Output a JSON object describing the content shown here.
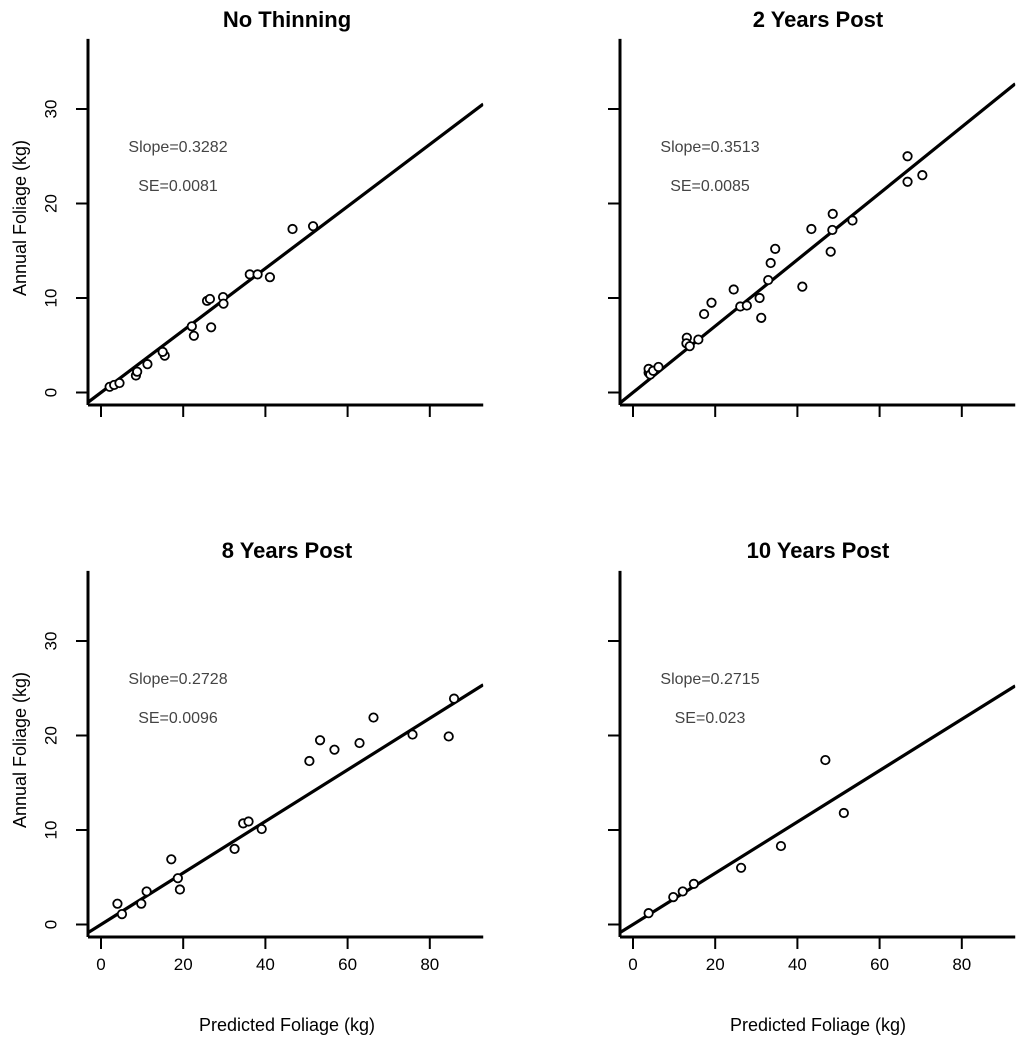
{
  "figure": {
    "panels": [
      {
        "title": "No Thinning",
        "slope_label": "Slope=0.3282",
        "se_label": "SE=0.0081",
        "xlabel": "",
        "ylabel": "Annual Foliage (kg)",
        "x_ticks": [
          0,
          20,
          40,
          60,
          80
        ],
        "x_tick_labels": [],
        "y_ticks": [
          0,
          10,
          20,
          30
        ],
        "y_tick_labels": [
          "0",
          "10",
          "20",
          "30"
        ]
      },
      {
        "title": "2 Years Post",
        "slope_label": "Slope=0.3513",
        "se_label": "SE=0.0085",
        "xlabel": "",
        "ylabel": "",
        "x_ticks": [
          0,
          20,
          40,
          60,
          80
        ],
        "x_tick_labels": [],
        "y_ticks": [
          0,
          10,
          20,
          30
        ],
        "y_tick_labels": []
      },
      {
        "title": "8 Years Post",
        "slope_label": "Slope=0.2728",
        "se_label": "SE=0.0096",
        "xlabel": "Predicted Foliage (kg)",
        "ylabel": "Annual Foliage (kg)",
        "x_ticks": [
          0,
          20,
          40,
          60,
          80
        ],
        "x_tick_labels": [
          "0",
          "20",
          "40",
          "60",
          "80"
        ],
        "y_ticks": [
          0,
          10,
          20,
          30
        ],
        "y_tick_labels": [
          "0",
          "10",
          "20",
          "30"
        ]
      },
      {
        "title": "10 Years Post",
        "slope_label": "Slope=0.2715",
        "se_label": "SE=0.023",
        "xlabel": "Predicted Foliage (kg)",
        "ylabel": "",
        "x_ticks": [
          0,
          20,
          40,
          60,
          80
        ],
        "x_tick_labels": [
          "0",
          "20",
          "40",
          "60",
          "80"
        ],
        "y_ticks": [
          0,
          10,
          20,
          30
        ],
        "y_tick_labels": []
      }
    ]
  },
  "chart_data": [
    {
      "type": "scatter",
      "title": "No Thinning",
      "xlabel": "Predicted Foliage (kg)",
      "ylabel": "Annual Foliage (kg)",
      "xlim": [
        -3,
        93
      ],
      "ylim": [
        -1.2,
        37
      ],
      "fit_line": {
        "slope": 0.3282,
        "intercept": 0
      },
      "points": [
        [
          2.1,
          0.6
        ],
        [
          3.2,
          0.8
        ],
        [
          4.5,
          1.0
        ],
        [
          8.5,
          1.8
        ],
        [
          8.8,
          2.2
        ],
        [
          11.3,
          3.0
        ],
        [
          15.5,
          3.9
        ],
        [
          15.0,
          4.3
        ],
        [
          22.1,
          7.0
        ],
        [
          22.6,
          6.0
        ],
        [
          25.8,
          9.7
        ],
        [
          26.5,
          9.9
        ],
        [
          26.8,
          6.9
        ],
        [
          29.7,
          10.1
        ],
        [
          29.8,
          9.4
        ],
        [
          36.2,
          12.5
        ],
        [
          38.1,
          12.5
        ],
        [
          41.1,
          12.2
        ],
        [
          46.6,
          17.3
        ],
        [
          51.6,
          17.6
        ]
      ]
    },
    {
      "type": "scatter",
      "title": "2 Years Post",
      "xlabel": "Predicted Foliage (kg)",
      "ylabel": "Annual Foliage (kg)",
      "xlim": [
        -3,
        93
      ],
      "ylim": [
        -1.2,
        37
      ],
      "fit_line": {
        "slope": 0.3513,
        "intercept": 0
      },
      "points": [
        [
          3.8,
          2.1
        ],
        [
          3.8,
          2.5
        ],
        [
          4.2,
          1.9
        ],
        [
          4.9,
          2.3
        ],
        [
          6.2,
          2.7
        ],
        [
          13.1,
          5.8
        ],
        [
          13.0,
          5.2
        ],
        [
          13.8,
          4.9
        ],
        [
          15.9,
          5.6
        ],
        [
          17.3,
          8.3
        ],
        [
          19.1,
          9.5
        ],
        [
          24.5,
          10.9
        ],
        [
          26.1,
          9.1
        ],
        [
          27.7,
          9.2
        ],
        [
          30.8,
          10.0
        ],
        [
          31.2,
          7.9
        ],
        [
          32.9,
          11.9
        ],
        [
          33.5,
          13.7
        ],
        [
          34.6,
          15.2
        ],
        [
          41.2,
          11.2
        ],
        [
          43.4,
          17.3
        ],
        [
          48.1,
          14.9
        ],
        [
          48.5,
          17.2
        ],
        [
          48.6,
          18.9
        ],
        [
          53.4,
          18.2
        ],
        [
          66.8,
          22.3
        ],
        [
          66.8,
          25.0
        ],
        [
          70.4,
          23.0
        ]
      ]
    },
    {
      "type": "scatter",
      "title": "8 Years Post",
      "xlabel": "Predicted Foliage (kg)",
      "ylabel": "Annual Foliage (kg)",
      "xlim": [
        -3,
        93
      ],
      "ylim": [
        -1.2,
        37
      ],
      "fit_line": {
        "slope": 0.2728,
        "intercept": 0
      },
      "points": [
        [
          4.0,
          2.2
        ],
        [
          5.1,
          1.1
        ],
        [
          9.8,
          2.2
        ],
        [
          11.1,
          3.5
        ],
        [
          17.1,
          6.9
        ],
        [
          18.7,
          4.9
        ],
        [
          19.2,
          3.7
        ],
        [
          32.5,
          8.0
        ],
        [
          34.6,
          10.7
        ],
        [
          35.9,
          10.9
        ],
        [
          39.1,
          10.1
        ],
        [
          50.7,
          17.3
        ],
        [
          53.3,
          19.5
        ],
        [
          56.8,
          18.5
        ],
        [
          62.9,
          19.2
        ],
        [
          66.3,
          21.9
        ],
        [
          75.8,
          20.1
        ],
        [
          84.6,
          19.9
        ],
        [
          85.9,
          23.9
        ]
      ]
    },
    {
      "type": "scatter",
      "title": "10 Years Post",
      "xlabel": "Predicted Foliage (kg)",
      "ylabel": "Annual Foliage (kg)",
      "xlim": [
        -3,
        93
      ],
      "ylim": [
        -1.2,
        37
      ],
      "fit_line": {
        "slope": 0.2715,
        "intercept": 0
      },
      "points": [
        [
          3.8,
          1.2
        ],
        [
          9.8,
          2.9
        ],
        [
          12.1,
          3.5
        ],
        [
          14.8,
          4.3
        ],
        [
          26.3,
          6.0
        ],
        [
          36.0,
          8.3
        ],
        [
          46.8,
          17.4
        ],
        [
          51.3,
          11.8
        ]
      ]
    }
  ]
}
